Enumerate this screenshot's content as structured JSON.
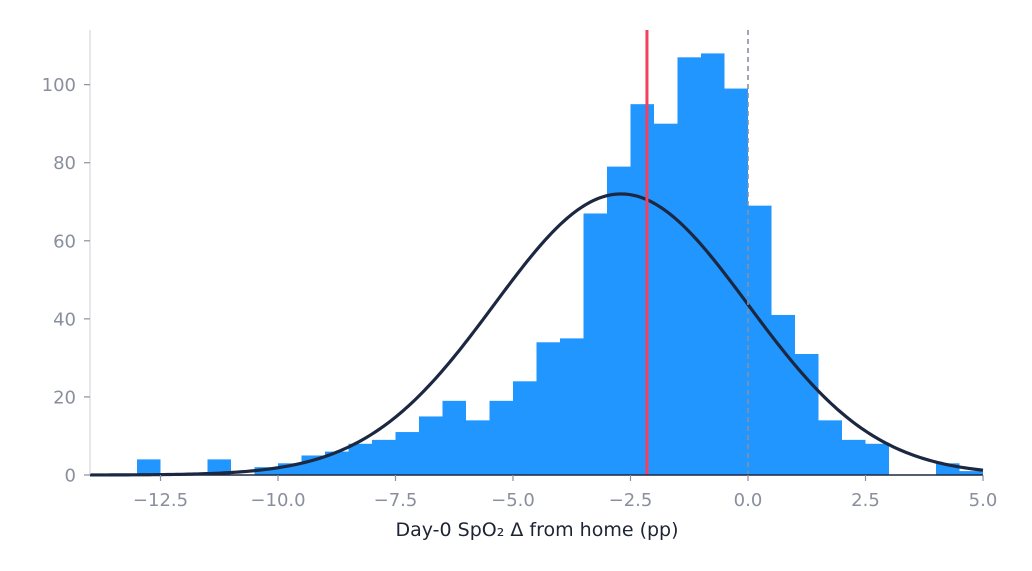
{
  "chart_data": {
    "type": "bar",
    "title": "",
    "xlabel": "Day-0 SpO₂ Δ from home (pp)",
    "ylabel": "",
    "xlim": [
      -14.0,
      5.0
    ],
    "ylim": [
      0,
      114
    ],
    "grid": false,
    "legend": "none",
    "bin_width": 0.5,
    "bins_start": [
      -13.0,
      -11.5,
      -10.5,
      -10.0,
      -9.5,
      -9.0,
      -8.5,
      -8.0,
      -7.5,
      -7.0,
      -6.5,
      -6.0,
      -5.5,
      -5.0,
      -4.5,
      -4.0,
      -3.5,
      -3.0,
      -2.5,
      -2.0,
      -1.5,
      -1.0,
      -0.5,
      0.0,
      0.5,
      1.0,
      1.5,
      2.0,
      2.5,
      4.0,
      4.5
    ],
    "counts": [
      4,
      4,
      2,
      3,
      5,
      6,
      8,
      9,
      11,
      15,
      19,
      14,
      19,
      24,
      34,
      35,
      67,
      79,
      95,
      90,
      107,
      108,
      99,
      69,
      41,
      31,
      14,
      9,
      8,
      3,
      1
    ],
    "normal_fit": {
      "mean": -2.7,
      "sd": 2.7,
      "peak": 72
    },
    "reference_lines": [
      {
        "x": -2.15,
        "style": "solid",
        "color": "#f43f5e"
      },
      {
        "x": 0.0,
        "style": "dashed",
        "color": "#8a8f9e"
      }
    ],
    "x_ticks": [
      -12.5,
      -10.0,
      -7.5,
      -5.0,
      -2.5,
      0.0,
      2.5,
      5.0
    ],
    "x_tick_labels": [
      "−12.5",
      "−10.0",
      "−7.5",
      "−5.0",
      "−2.5",
      "0.0",
      "2.5",
      "5.0"
    ],
    "y_ticks": [
      0,
      20,
      40,
      60,
      80,
      100
    ],
    "y_tick_labels": [
      "0",
      "20",
      "40",
      "60",
      "80",
      "100"
    ],
    "colors": {
      "bars": "#2196ff",
      "curve": "#1c2841",
      "axis": "#8a8f9e",
      "spine": "#d4d7dd"
    }
  }
}
